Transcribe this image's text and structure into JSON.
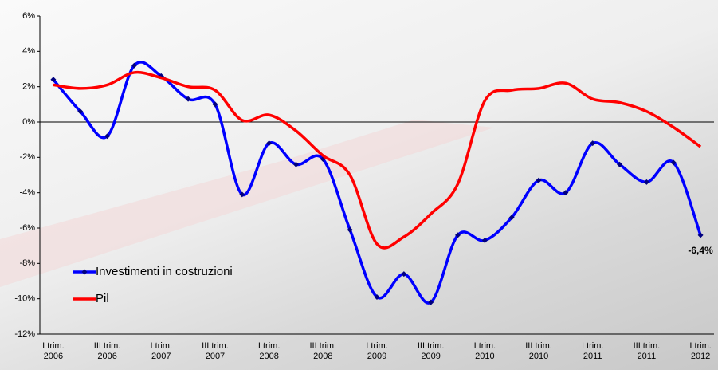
{
  "chart_data": {
    "type": "line",
    "categories": [
      "I trim.\n2006",
      null,
      "III trim.\n2006",
      null,
      "I trim.\n2007",
      null,
      "III trim.\n2007",
      null,
      "I trim.\n2008",
      null,
      "III trim.\n2008",
      null,
      "I trim.\n2009",
      null,
      "III trim.\n2009",
      null,
      "I trim.\n2010",
      null,
      "III trim.\n2010",
      null,
      "I trim.\n2011",
      null,
      "III trim.\n2011",
      null,
      "I trim.\n2012"
    ],
    "series": [
      {
        "name": "Investimenti in costruzioni",
        "color": "#0000ff",
        "markers": true,
        "values": [
          2.4,
          0.6,
          -0.8,
          3.2,
          2.6,
          1.3,
          1.0,
          -4.1,
          -1.2,
          -2.4,
          -2.1,
          -6.1,
          -9.9,
          -8.6,
          -10.2,
          -6.4,
          -6.7,
          -5.4,
          -3.3,
          -4.0,
          -1.2,
          -2.4,
          -3.4,
          -2.3,
          -6.4
        ],
        "value_labels": [
          null,
          null,
          null,
          null,
          null,
          null,
          null,
          null,
          null,
          null,
          null,
          null,
          null,
          null,
          null,
          null,
          null,
          null,
          null,
          null,
          null,
          null,
          null,
          null,
          "-6,4%"
        ]
      },
      {
        "name": "Pil",
        "color": "#ff0000",
        "markers": false,
        "values": [
          2.1,
          1.9,
          2.1,
          2.8,
          2.5,
          2.0,
          1.8,
          0.1,
          0.4,
          -0.5,
          -1.9,
          -3.0,
          -6.9,
          -6.5,
          -5.2,
          -3.5,
          1.2,
          1.8,
          1.9,
          2.2,
          1.3,
          1.1,
          0.6,
          -0.3,
          -1.4
        ]
      }
    ],
    "ylim": [
      -12,
      6
    ],
    "yticks": [
      {
        "value": -12,
        "label": "-12%"
      },
      {
        "value": -10,
        "label": "-10%"
      },
      {
        "value": -8,
        "label": "-8%"
      },
      {
        "value": -6,
        "label": "-6%"
      },
      {
        "value": -4,
        "label": "-4%"
      },
      {
        "value": -2,
        "label": "-2%"
      },
      {
        "value": 0,
        "label": "0%"
      },
      {
        "value": 2,
        "label": "2%"
      },
      {
        "value": 4,
        "label": "4%"
      },
      {
        "value": 6,
        "label": "6%"
      }
    ],
    "legend": "lower-left"
  }
}
